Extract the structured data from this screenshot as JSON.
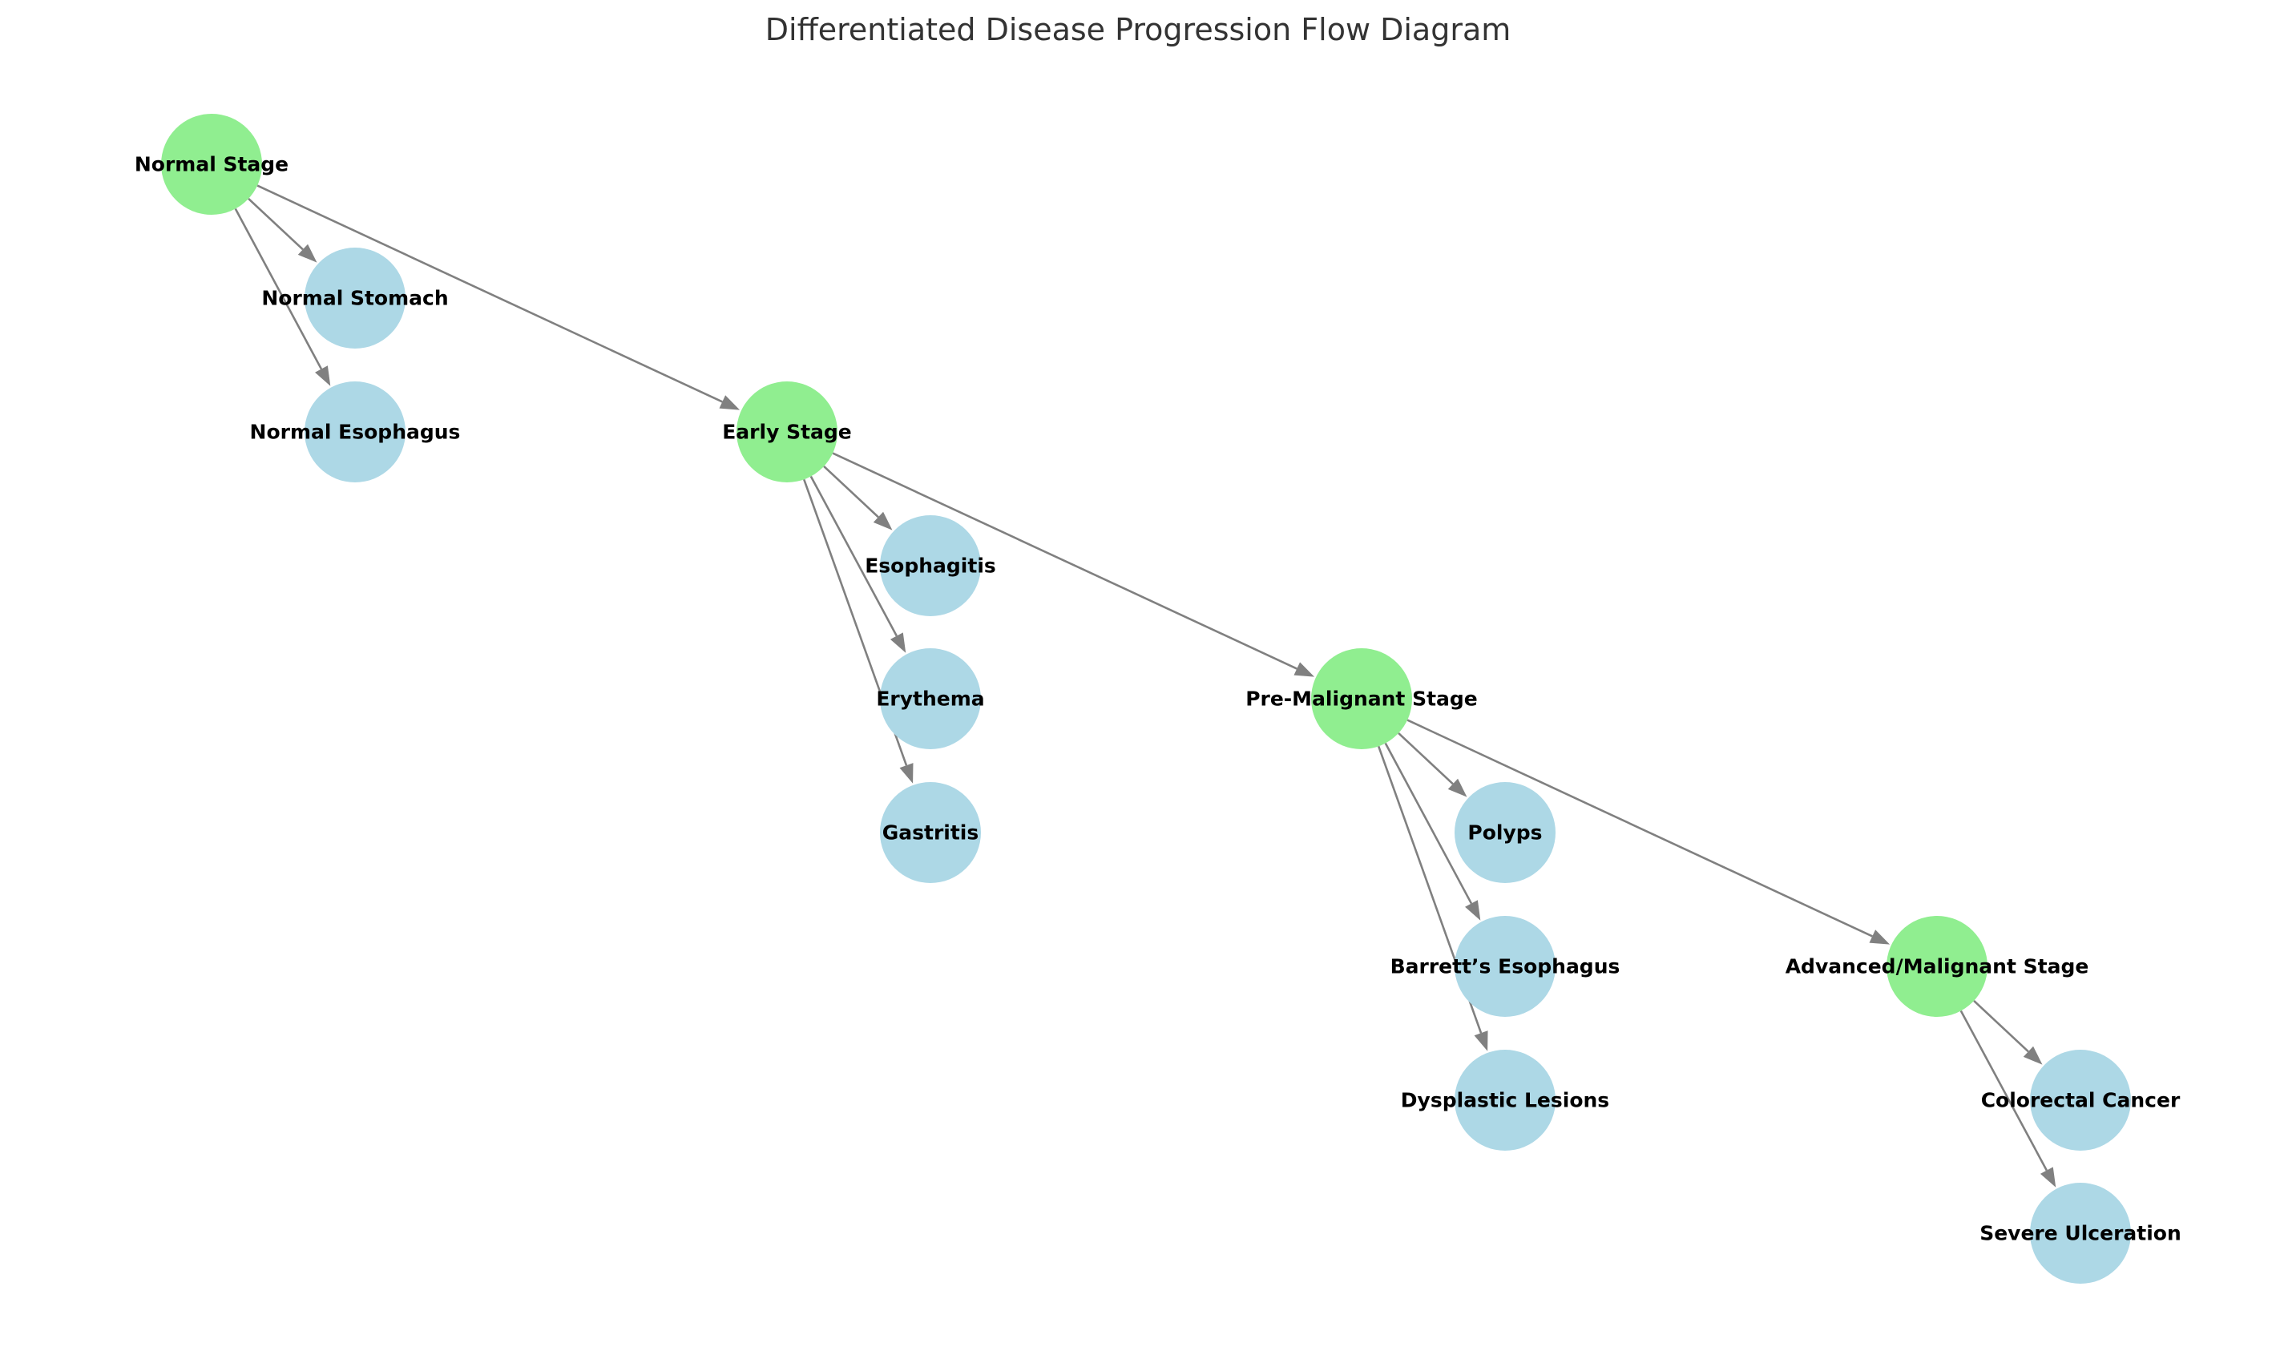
{
  "title": "Differentiated Disease Progression Flow Diagram",
  "colors": {
    "stage_node": "#90ee90",
    "condition_node": "#add8e6",
    "edge": "#808080",
    "label": "#000000",
    "title": "#333333"
  },
  "nodes": [
    {
      "id": "normal_stage",
      "label": "Normal Stage",
      "kind": "stage"
    },
    {
      "id": "normal_stomach",
      "label": "Normal Stomach",
      "kind": "condition"
    },
    {
      "id": "normal_esophagus",
      "label": "Normal Esophagus",
      "kind": "condition"
    },
    {
      "id": "early_stage",
      "label": "Early Stage",
      "kind": "stage"
    },
    {
      "id": "esophagitis",
      "label": "Esophagitis",
      "kind": "condition"
    },
    {
      "id": "erythema",
      "label": "Erythema",
      "kind": "condition"
    },
    {
      "id": "gastritis",
      "label": "Gastritis",
      "kind": "condition"
    },
    {
      "id": "pre_malignant_stage",
      "label": "Pre-Malignant Stage",
      "kind": "stage"
    },
    {
      "id": "polyps",
      "label": "Polyps",
      "kind": "condition"
    },
    {
      "id": "barretts_esophagus",
      "label": "Barrett’s Esophagus",
      "kind": "condition"
    },
    {
      "id": "dysplastic_lesions",
      "label": "Dysplastic Lesions",
      "kind": "condition"
    },
    {
      "id": "advanced_malignant_stage",
      "label": "Advanced/Malignant Stage",
      "kind": "stage"
    },
    {
      "id": "colorectal_cancer",
      "label": "Colorectal Cancer",
      "kind": "condition"
    },
    {
      "id": "severe_ulceration",
      "label": "Severe Ulceration",
      "kind": "condition"
    }
  ],
  "edges": [
    {
      "from": "normal_stage",
      "to": "normal_stomach"
    },
    {
      "from": "normal_stage",
      "to": "normal_esophagus"
    },
    {
      "from": "normal_stage",
      "to": "early_stage"
    },
    {
      "from": "early_stage",
      "to": "esophagitis"
    },
    {
      "from": "early_stage",
      "to": "erythema"
    },
    {
      "from": "early_stage",
      "to": "gastritis"
    },
    {
      "from": "early_stage",
      "to": "pre_malignant_stage"
    },
    {
      "from": "pre_malignant_stage",
      "to": "polyps"
    },
    {
      "from": "pre_malignant_stage",
      "to": "barretts_esophagus"
    },
    {
      "from": "pre_malignant_stage",
      "to": "dysplastic_lesions"
    },
    {
      "from": "pre_malignant_stage",
      "to": "advanced_malignant_stage"
    },
    {
      "from": "advanced_malignant_stage",
      "to": "colorectal_cancer"
    },
    {
      "from": "advanced_malignant_stage",
      "to": "severe_ulceration"
    }
  ]
}
